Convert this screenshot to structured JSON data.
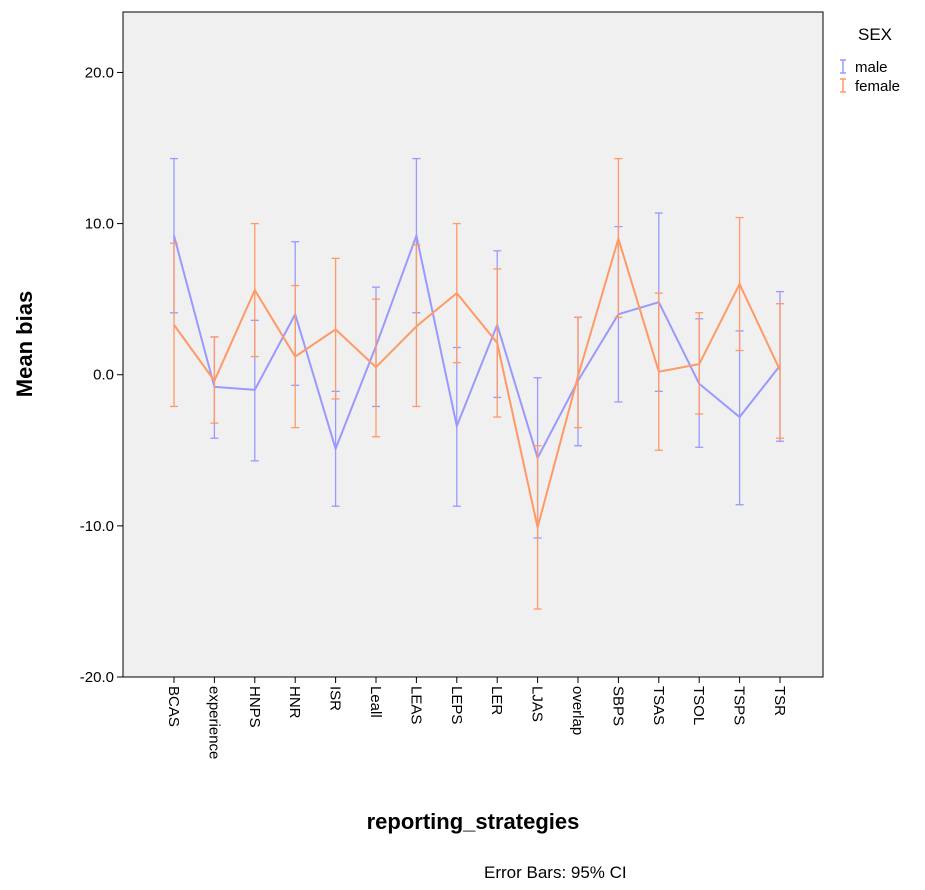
{
  "chart_data": {
    "type": "line",
    "xlabel": "reporting_strategies",
    "ylabel": "Mean bias",
    "ylim": [
      -20,
      24
    ],
    "yticks": [
      -20,
      -10,
      0,
      10,
      20
    ],
    "ytick_labels": [
      "-20.0",
      "-10.0",
      "0.0",
      "10.0",
      "20.0"
    ],
    "categories": [
      "BCAS",
      "experience",
      "HNPS",
      "HNR",
      "ISR",
      "Leall",
      "LEAS",
      "LEPS",
      "LER",
      "LJAS",
      "overlap",
      "SBPS",
      "TSAS",
      "TSOL",
      "TSPS",
      "TSR"
    ],
    "legend": {
      "title": "SEX",
      "position": "top-right"
    },
    "grid": false,
    "plot_background": "#f0f0f0",
    "footnote": "Error Bars: 95% CI",
    "series": [
      {
        "name": "male",
        "color": "#9999ff",
        "means": [
          9.2,
          -0.8,
          -1.0,
          4.0,
          -4.9,
          1.9,
          9.2,
          -3.4,
          3.3,
          -5.5,
          -0.4,
          4.0,
          4.8,
          -0.6,
          -2.8,
          0.6
        ],
        "ci_low": [
          4.1,
          -4.2,
          -5.7,
          -0.7,
          -8.7,
          -2.1,
          4.1,
          -8.7,
          -1.5,
          -10.8,
          -4.7,
          -1.8,
          -1.1,
          -4.8,
          -8.6,
          -4.4
        ],
        "ci_high": [
          14.3,
          2.5,
          3.6,
          8.8,
          -1.1,
          5.8,
          14.3,
          1.8,
          8.2,
          -0.2,
          3.8,
          9.8,
          10.7,
          3.7,
          2.9,
          5.5
        ]
      },
      {
        "name": "female",
        "color": "#ff9966",
        "means": [
          3.3,
          -0.4,
          5.6,
          1.2,
          3.0,
          0.5,
          3.2,
          5.4,
          2.1,
          -10.1,
          -0.1,
          9.0,
          0.2,
          0.7,
          6.0,
          0.3
        ],
        "ci_low": [
          -2.1,
          -3.2,
          1.2,
          -3.5,
          -1.6,
          -4.1,
          -2.1,
          0.8,
          -2.8,
          -15.5,
          -3.5,
          3.8,
          -5.0,
          -2.6,
          1.6,
          -4.2
        ],
        "ci_high": [
          8.7,
          2.5,
          10.0,
          5.9,
          7.7,
          5.0,
          8.6,
          10.0,
          7.0,
          -4.7,
          3.8,
          14.3,
          5.4,
          4.1,
          10.4,
          4.7
        ]
      }
    ]
  }
}
